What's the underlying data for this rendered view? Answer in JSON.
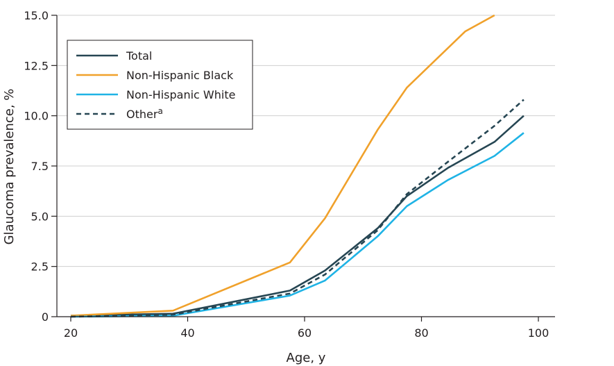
{
  "chart_data": {
    "type": "line",
    "title": "",
    "xlabel": "Age, y",
    "ylabel": "Glaucoma prevalence, %",
    "xlim": [
      20,
      100
    ],
    "ylim": [
      0,
      15
    ],
    "xticks": [
      20,
      40,
      60,
      80,
      100
    ],
    "yticks": [
      0,
      2.5,
      5.0,
      7.5,
      10.0,
      12.5,
      15.0
    ],
    "ytick_labels": [
      "0",
      "2.5",
      "5.0",
      "7.5",
      "10.0",
      "12.5",
      "15.0"
    ],
    "grid": "horizontal",
    "legend_position": "top-left",
    "series": [
      {
        "name": "Total",
        "color": "#264653",
        "dash": "solid",
        "points": [
          [
            20,
            0.05
          ],
          [
            37.5,
            0.15
          ],
          [
            57.5,
            1.3
          ],
          [
            63.5,
            2.3
          ],
          [
            72.5,
            4.4
          ],
          [
            77.5,
            6.0
          ],
          [
            84.5,
            7.4
          ],
          [
            92.5,
            8.7
          ],
          [
            97.5,
            10.0
          ]
        ]
      },
      {
        "name": "Non-Hispanic Black",
        "color": "#f0a12b",
        "dash": "solid",
        "points": [
          [
            20,
            0.05
          ],
          [
            37.5,
            0.3
          ],
          [
            57.5,
            2.7
          ],
          [
            63.5,
            4.9
          ],
          [
            72.5,
            9.3
          ],
          [
            77.5,
            11.4
          ],
          [
            87.5,
            14.2
          ],
          [
            92.5,
            15.0
          ]
        ]
      },
      {
        "name": "Non-Hispanic White",
        "color": "#1fb3e5",
        "dash": "solid",
        "points": [
          [
            20,
            0.0
          ],
          [
            37.5,
            0.05
          ],
          [
            57.5,
            1.05
          ],
          [
            63.5,
            1.8
          ],
          [
            72.5,
            4.0
          ],
          [
            77.5,
            5.5
          ],
          [
            84.5,
            6.8
          ],
          [
            92.5,
            8.0
          ],
          [
            97.5,
            9.15
          ]
        ]
      },
      {
        "name": "Other",
        "name_superscript": "a",
        "color": "#264653",
        "dash": "dashed",
        "points": [
          [
            20,
            0.0
          ],
          [
            37.5,
            0.1
          ],
          [
            57.5,
            1.15
          ],
          [
            63.5,
            2.1
          ],
          [
            72.5,
            4.3
          ],
          [
            77.5,
            6.1
          ],
          [
            84.5,
            7.7
          ],
          [
            92.5,
            9.5
          ],
          [
            97.5,
            10.8
          ]
        ]
      }
    ]
  }
}
